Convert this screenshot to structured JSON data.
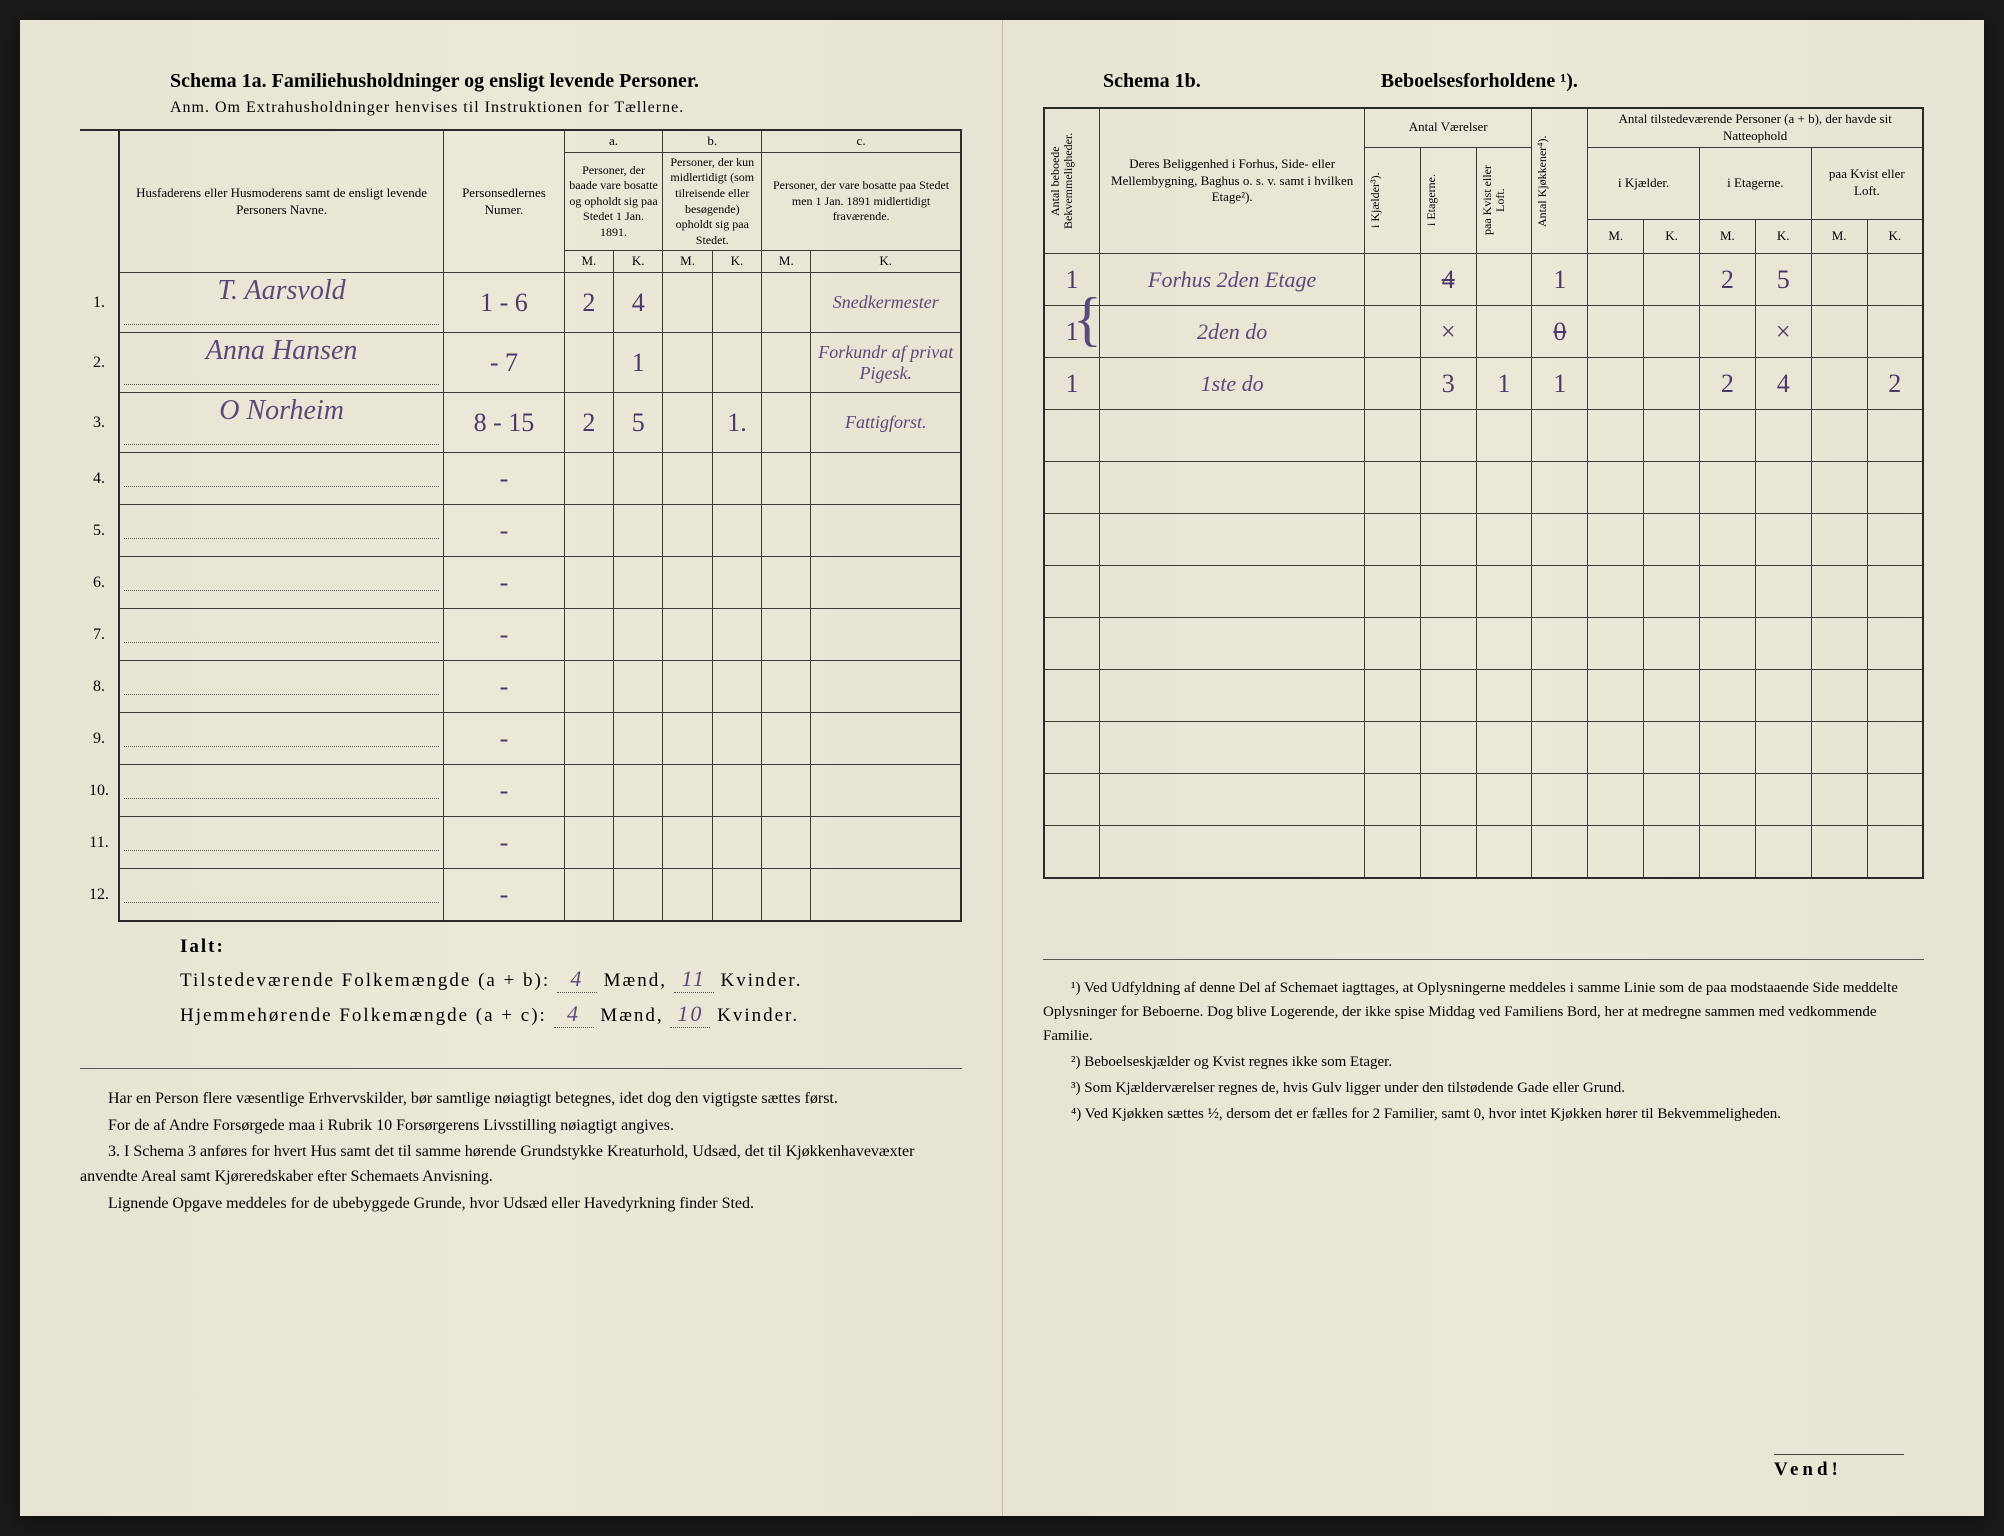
{
  "left": {
    "schema_label": "Schema 1a.",
    "schema_title": "Familiehusholdninger og ensligt levende Personer.",
    "subtitle": "Anm. Om Extrahusholdninger henvises til Instruktionen for Tællerne.",
    "headers": {
      "col1": "Husfaderens eller Husmoderens samt de ensligt levende Personers Navne.",
      "col2": "Personsedlernes Numer.",
      "a_label": "a.",
      "a_text": "Personer, der baade vare bosatte og opholdt sig paa Stedet 1 Jan. 1891.",
      "b_label": "b.",
      "b_text": "Personer, der kun midlertidigt (som tilreisende eller besøgende) opholdt sig paa Stedet.",
      "c_label": "c.",
      "c_text": "Personer, der vare bosatte paa Stedet men 1 Jan. 1891 midlertidigt fraværende.",
      "M": "M.",
      "K": "K."
    },
    "rows": [
      {
        "n": "1.",
        "name": "T. Aarsvold",
        "nums": "1 - 6",
        "aM": "2",
        "aK": "4",
        "bM": "",
        "bK": "",
        "cM": "",
        "cK": "Snedkermester"
      },
      {
        "n": "2.",
        "name": "Anna Hansen",
        "nums": "- 7",
        "aM": "",
        "aK": "1",
        "bM": "",
        "bK": "",
        "cM": "",
        "cK": "Forkundr af privat Pigesk."
      },
      {
        "n": "3.",
        "name": "O Norheim",
        "nums": "8 - 15",
        "aM": "2",
        "aK": "5",
        "bM": "",
        "bK": "1.",
        "cM": "",
        "cK": "Fattigforst."
      },
      {
        "n": "4.",
        "name": "",
        "nums": "-",
        "aM": "",
        "aK": "",
        "bM": "",
        "bK": "",
        "cM": "",
        "cK": ""
      },
      {
        "n": "5.",
        "name": "",
        "nums": "-",
        "aM": "",
        "aK": "",
        "bM": "",
        "bK": "",
        "cM": "",
        "cK": ""
      },
      {
        "n": "6.",
        "name": "",
        "nums": "-",
        "aM": "",
        "aK": "",
        "bM": "",
        "bK": "",
        "cM": "",
        "cK": ""
      },
      {
        "n": "7.",
        "name": "",
        "nums": "-",
        "aM": "",
        "aK": "",
        "bM": "",
        "bK": "",
        "cM": "",
        "cK": ""
      },
      {
        "n": "8.",
        "name": "",
        "nums": "-",
        "aM": "",
        "aK": "",
        "bM": "",
        "bK": "",
        "cM": "",
        "cK": ""
      },
      {
        "n": "9.",
        "name": "",
        "nums": "-",
        "aM": "",
        "aK": "",
        "bM": "",
        "bK": "",
        "cM": "",
        "cK": ""
      },
      {
        "n": "10.",
        "name": "",
        "nums": "-",
        "aM": "",
        "aK": "",
        "bM": "",
        "bK": "",
        "cM": "",
        "cK": ""
      },
      {
        "n": "11.",
        "name": "",
        "nums": "-",
        "aM": "",
        "aK": "",
        "bM": "",
        "bK": "",
        "cM": "",
        "cK": ""
      },
      {
        "n": "12.",
        "name": "",
        "nums": "-",
        "aM": "",
        "aK": "",
        "bM": "",
        "bK": "",
        "cM": "",
        "cK": ""
      }
    ],
    "totals": {
      "ialt": "Ialt:",
      "line1_label": "Tilstedeværende Folkemængde (a + b):",
      "line1_M": "4",
      "line1_K": "11",
      "line2_label": "Hjemmehørende Folkemængde (a + c):",
      "line2_M": "4",
      "line2_K": "10",
      "maend": "Mænd,",
      "kvinder": "Kvinder."
    },
    "instructions": {
      "p1": "Har en Person flere væsentlige Erhvervskilder, bør samtlige nøiagtigt betegnes, idet dog den vigtigste sættes først.",
      "p2": "For de af Andre Forsørgede maa i Rubrik 10 Forsørgerens Livsstilling nøiagtigt angives.",
      "p3_num": "3.",
      "p3": "I Schema 3 anføres for hvert Hus samt det til samme hørende Grundstykke Kreaturhold, Udsæd, det til Kjøkkenhavevæxter anvendte Areal samt Kjøreredskaber efter Schemaets Anvisning.",
      "p4": "Lignende Opgave meddeles for de ubebyggede Grunde, hvor Udsæd eller Havedyrkning finder Sted."
    }
  },
  "right": {
    "schema_label": "Schema 1b.",
    "schema_title": "Beboelsesforholdene ¹).",
    "headers": {
      "col1": "Antal beboede Bekvemmeligheder.",
      "col2": "Deres Beliggenhed i Forhus, Side- eller Mellembygning, Baghus o. s. v. samt i hvilken Etage²).",
      "vaer_label": "Antal Værelser",
      "vaer_a": "i Kjælder³).",
      "vaer_b": "i Etagerne.",
      "vaer_c": "paa Kvist eller Loft.",
      "kjok": "Antal Kjøkkener⁴).",
      "pers_label": "Antal tilstedeværende Personer (a + b), der havde sit Natteophold",
      "pers_a": "i Kjælder.",
      "pers_b": "i Etagerne.",
      "pers_c": "paa Kvist eller Loft.",
      "M": "M.",
      "K": "K."
    },
    "rows": [
      {
        "bek": "1",
        "loc": "Forhus 2den Etage",
        "kj": "",
        "et": "4",
        "kv": "",
        "kjok": "1",
        "pKjM": "",
        "pKjK": "",
        "pEtM": "2",
        "pEtK": "5",
        "pKvM": "",
        "pKvK": ""
      },
      {
        "bek": "1",
        "loc": "2den  do",
        "kj": "",
        "et": "×",
        "kv": "",
        "kjok": "0",
        "pKjM": "",
        "pKjK": "",
        "pEtM": "",
        "pEtK": "×",
        "pKvM": "",
        "pKvK": ""
      },
      {
        "bek": "1",
        "loc": "1ste  do",
        "kj": "",
        "et": "3",
        "kv": "1",
        "kjok": "1",
        "pKjM": "",
        "pKjK": "",
        "pEtM": "2",
        "pEtK": "4",
        "pKvM": "",
        "pKvK": "2"
      },
      {
        "bek": "",
        "loc": "",
        "kj": "",
        "et": "",
        "kv": "",
        "kjok": "",
        "pKjM": "",
        "pKjK": "",
        "pEtM": "",
        "pEtK": "",
        "pKvM": "",
        "pKvK": ""
      },
      {
        "bek": "",
        "loc": "",
        "kj": "",
        "et": "",
        "kv": "",
        "kjok": "",
        "pKjM": "",
        "pKjK": "",
        "pEtM": "",
        "pEtK": "",
        "pKvM": "",
        "pKvK": ""
      },
      {
        "bek": "",
        "loc": "",
        "kj": "",
        "et": "",
        "kv": "",
        "kjok": "",
        "pKjM": "",
        "pKjK": "",
        "pEtM": "",
        "pEtK": "",
        "pKvM": "",
        "pKvK": ""
      },
      {
        "bek": "",
        "loc": "",
        "kj": "",
        "et": "",
        "kv": "",
        "kjok": "",
        "pKjM": "",
        "pKjK": "",
        "pEtM": "",
        "pEtK": "",
        "pKvM": "",
        "pKvK": ""
      },
      {
        "bek": "",
        "loc": "",
        "kj": "",
        "et": "",
        "kv": "",
        "kjok": "",
        "pKjM": "",
        "pKjK": "",
        "pEtM": "",
        "pEtK": "",
        "pKvM": "",
        "pKvK": ""
      },
      {
        "bek": "",
        "loc": "",
        "kj": "",
        "et": "",
        "kv": "",
        "kjok": "",
        "pKjM": "",
        "pKjK": "",
        "pEtM": "",
        "pEtK": "",
        "pKvM": "",
        "pKvK": ""
      },
      {
        "bek": "",
        "loc": "",
        "kj": "",
        "et": "",
        "kv": "",
        "kjok": "",
        "pKjM": "",
        "pKjK": "",
        "pEtM": "",
        "pEtK": "",
        "pKvM": "",
        "pKvK": ""
      },
      {
        "bek": "",
        "loc": "",
        "kj": "",
        "et": "",
        "kv": "",
        "kjok": "",
        "pKjM": "",
        "pKjK": "",
        "pEtM": "",
        "pEtK": "",
        "pKvM": "",
        "pKvK": ""
      },
      {
        "bek": "",
        "loc": "",
        "kj": "",
        "et": "",
        "kv": "",
        "kjok": "",
        "pKjM": "",
        "pKjK": "",
        "pEtM": "",
        "pEtK": "",
        "pKvM": "",
        "pKvK": ""
      }
    ],
    "footnotes": {
      "f1": "¹) Ved Udfyldning af denne Del af Schemaet iagttages, at Oplysningerne meddeles i samme Linie som de paa modstaaende Side meddelte Oplysninger for Beboerne. Dog blive Logerende, der ikke spise Middag ved Familiens Bord, her at medregne sammen med vedkommende Familie.",
      "f2": "²) Beboelseskjælder og Kvist regnes ikke som Etager.",
      "f3": "³) Som Kjælderværelser regnes de, hvis Gulv ligger under den tilstødende Gade eller Grund.",
      "f4": "⁴) Ved Kjøkken sættes ½, dersom det er fælles for 2 Familier, samt 0, hvor intet Kjøkken hører til Bekvemmeligheden."
    },
    "vend": "Vend!"
  },
  "colors": {
    "paper": "#e8e4d4",
    "ink": "#2a2a2a",
    "handwriting": "#5a4a7a"
  }
}
